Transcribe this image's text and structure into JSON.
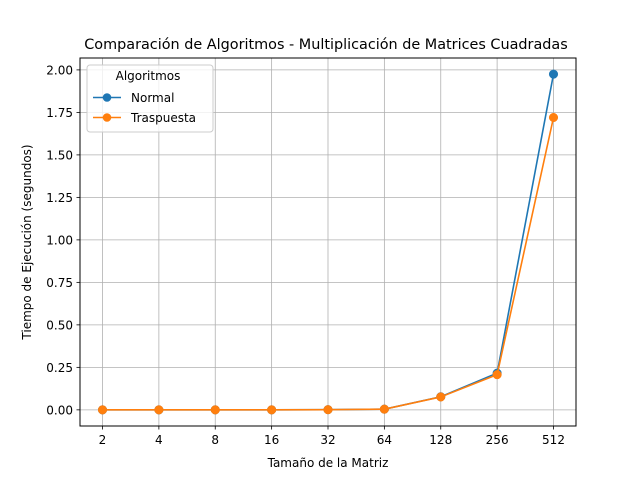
{
  "chart_data": {
    "type": "line",
    "title": "Comparación de Algoritmos - Multiplicación de Matrices Cuadradas",
    "xlabel": "Tamaño de la Matriz",
    "ylabel": "Tiempo de Ejecución (segundos)",
    "categories": [
      "2",
      "4",
      "8",
      "16",
      "32",
      "64",
      "128",
      "256",
      "512"
    ],
    "y_ticks": [
      "0.00",
      "0.25",
      "0.50",
      "0.75",
      "1.00",
      "1.25",
      "1.50",
      "1.75",
      "2.00"
    ],
    "ylim": [
      -0.095,
      2.07
    ],
    "grid": true,
    "legend": {
      "title": "Algoritmos",
      "placement": "top-left"
    },
    "series": [
      {
        "name": "Normal",
        "color": "#1f77b4",
        "values": [
          0.0,
          0.0,
          0.0,
          0.0,
          0.001,
          0.004,
          0.077,
          0.216,
          1.975
        ]
      },
      {
        "name": "Traspuesta",
        "color": "#ff7f0e",
        "values": [
          0.0,
          0.0,
          0.0,
          0.0,
          0.001,
          0.004,
          0.076,
          0.207,
          1.72
        ]
      }
    ]
  }
}
